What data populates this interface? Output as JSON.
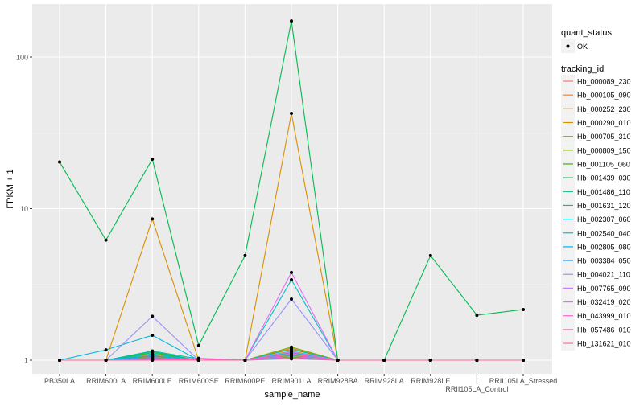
{
  "chart_data": {
    "type": "line",
    "title": "",
    "xlabel": "sample_name",
    "ylabel": "FPKM + 1",
    "yscale": "log10",
    "ylim": [
      0.93,
      200
    ],
    "yticks": [
      1,
      10,
      100
    ],
    "ytick_labels": [
      "1",
      "10",
      "100"
    ],
    "grid": true,
    "legend_position": "right",
    "categories": [
      "PB350LA",
      "RRIM600LA",
      "RRIM600LE",
      "RRIM600SE",
      "RRIM600PE",
      "RRIM901LA",
      "RRIM928BA",
      "RRIM928LA",
      "RRIM928LE",
      "RRII105LA_Control",
      "RRII105LA_Stressed"
    ],
    "point_legend": {
      "title": "quant_status",
      "entries": [
        "OK"
      ]
    },
    "series_legend_title": "tracking_id",
    "series": [
      {
        "name": "Hb_000089_230",
        "color": "#F8766D",
        "values": [
          1,
          1,
          1.05,
          1.02,
          1,
          1.12,
          1,
          1,
          1,
          1,
          1
        ]
      },
      {
        "name": "Hb_000105_090",
        "color": "#EA8331",
        "values": [
          1,
          1,
          1.08,
          1,
          1,
          1.2,
          1,
          1,
          1,
          1,
          1
        ]
      },
      {
        "name": "Hb_000252_230",
        "color": "#D89000",
        "values": [
          1,
          1,
          1.03,
          1,
          1,
          1.15,
          1,
          1,
          1,
          1,
          1
        ]
      },
      {
        "name": "Hb_000290_010",
        "color": "#D89000",
        "values": [
          1,
          1,
          8.55,
          1,
          1,
          42.5,
          1,
          1,
          1,
          1,
          1
        ]
      },
      {
        "name": "Hb_000705_310",
        "color": "#A3A500",
        "values": [
          1,
          1,
          1.1,
          1,
          1,
          1.08,
          1,
          1,
          1,
          1,
          1
        ]
      },
      {
        "name": "Hb_000809_150",
        "color": "#7CAE00",
        "values": [
          1,
          1,
          1.06,
          1,
          1,
          1.22,
          1,
          1,
          1,
          1,
          1
        ]
      },
      {
        "name": "Hb_001105_060",
        "color": "#39B600",
        "values": [
          1,
          1,
          1.12,
          1,
          1,
          1.05,
          1,
          1,
          1,
          1,
          1
        ]
      },
      {
        "name": "Hb_001439_030",
        "color": "#00BB4E",
        "values": [
          20.3,
          6.2,
          21.2,
          1.25,
          4.9,
          173,
          1,
          1,
          4.9,
          1.98,
          2.16
        ]
      },
      {
        "name": "Hb_001486_110",
        "color": "#00BF7D",
        "values": [
          1,
          1,
          1.14,
          1,
          1,
          1.1,
          1,
          1,
          1,
          1,
          1
        ]
      },
      {
        "name": "Hb_001631_120",
        "color": "#00C1A3",
        "values": [
          1,
          1,
          1.15,
          1.02,
          1,
          1.18,
          1,
          1,
          1,
          1,
          1
        ]
      },
      {
        "name": "Hb_002307_060",
        "color": "#00BFC4",
        "values": [
          1,
          1,
          1.1,
          1,
          1,
          3.39,
          1,
          1,
          1,
          1,
          1
        ]
      },
      {
        "name": "Hb_002540_040",
        "color": "#00BAE0",
        "values": [
          1,
          1.17,
          1.46,
          1,
          1,
          1.12,
          1,
          1,
          1,
          1,
          1
        ]
      },
      {
        "name": "Hb_002805_080",
        "color": "#00B0F6",
        "values": [
          1,
          1,
          1.07,
          1,
          1,
          1.03,
          1,
          1,
          1,
          1,
          1
        ]
      },
      {
        "name": "Hb_003384_050",
        "color": "#35A2FF",
        "values": [
          1,
          1,
          1.04,
          1,
          1,
          1.07,
          1,
          1,
          1,
          1,
          1
        ]
      },
      {
        "name": "Hb_004021_110",
        "color": "#9590FF",
        "values": [
          1,
          1,
          1.95,
          1,
          1,
          2.53,
          1,
          1,
          1,
          1,
          1
        ]
      },
      {
        "name": "Hb_007765_090",
        "color": "#C77CFF",
        "values": [
          1,
          1,
          1.02,
          1,
          1,
          1.14,
          1,
          1,
          1,
          1,
          1
        ]
      },
      {
        "name": "Hb_032419_020",
        "color": "#E76BF3",
        "values": [
          1,
          1,
          1.01,
          1,
          1,
          3.79,
          1,
          1,
          1,
          1,
          1
        ]
      },
      {
        "name": "Hb_043999_010",
        "color": "#FA62DB",
        "values": [
          1,
          1,
          1.01,
          1.03,
          1,
          1.06,
          1,
          1,
          1,
          1,
          1
        ]
      },
      {
        "name": "Hb_057486_010",
        "color": "#FF62BC",
        "values": [
          1,
          1,
          1,
          1.02,
          1,
          1.1,
          1,
          1,
          1,
          1,
          1
        ]
      },
      {
        "name": "Hb_131621_010",
        "color": "#FF6C91",
        "values": [
          1,
          1,
          1,
          1,
          1,
          1.02,
          1,
          1,
          1,
          1,
          1
        ]
      }
    ]
  }
}
